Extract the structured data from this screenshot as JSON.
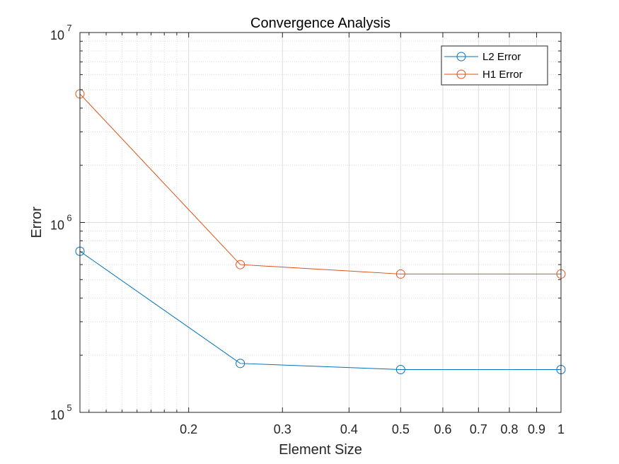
{
  "chart_data": {
    "type": "line",
    "title": "Convergence Analysis",
    "xlabel": "Element Size",
    "ylabel": "Error",
    "xscale": "log",
    "yscale": "log",
    "xlim": [
      0.125,
      1
    ],
    "ylim": [
      100000,
      10000000
    ],
    "grid": true,
    "minor_grid": true,
    "legend_position": "top-right",
    "x_ticks": [
      {
        "value": 0.2,
        "label": "0.2"
      },
      {
        "value": 0.3,
        "label": "0.3"
      },
      {
        "value": 0.4,
        "label": "0.4"
      },
      {
        "value": 0.5,
        "label": "0.5"
      },
      {
        "value": 0.6,
        "label": "0.6"
      },
      {
        "value": 0.7,
        "label": "0.7"
      },
      {
        "value": 0.8,
        "label": "0.8"
      },
      {
        "value": 0.9,
        "label": "0.9"
      },
      {
        "value": 1,
        "label": "1"
      }
    ],
    "y_ticks": [
      {
        "value": 100000,
        "base": "10",
        "exp": "5"
      },
      {
        "value": 1000000,
        "base": "10",
        "exp": "6"
      },
      {
        "value": 10000000,
        "base": "10",
        "exp": "7"
      }
    ],
    "x": [
      0.125,
      0.25,
      0.5,
      1
    ],
    "series": [
      {
        "name": "L2 Error",
        "color": "#0072BD",
        "marker": "circle",
        "values": [
          705000,
          181000,
          168000,
          168000
        ]
      },
      {
        "name": "H1 Error",
        "color": "#D95319",
        "marker": "circle",
        "values": [
          4750000,
          600000,
          535000,
          535000
        ]
      }
    ]
  }
}
